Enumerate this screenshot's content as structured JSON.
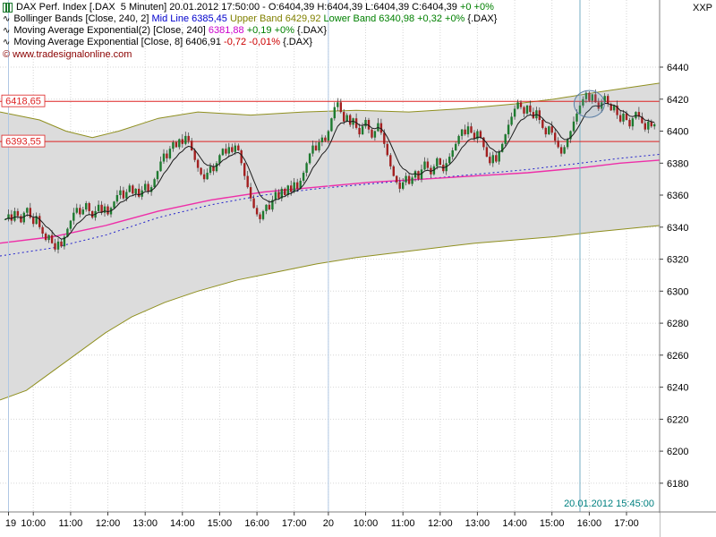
{
  "theme": {
    "grid": "#d6d6d6",
    "band_fill": "#dcdcdc",
    "band_edge": "#8f8f1f",
    "mid_line": "#2222cc",
    "ema240": "#ee2fa8",
    "ema8": "#1a1a1a",
    "candle_up": "#1d7a2f",
    "candle_down": "#a32020",
    "wick": "#333333",
    "hline": "#dd2222",
    "session_line": "#b0c8e4",
    "cursor_line": "#74aec6",
    "circle_stroke": "#5b7fa6",
    "circle_fill": "rgba(130,160,195,0.18)",
    "axis_border": "#808080",
    "timestamp": "#008080",
    "copyright": "#8b0000"
  },
  "icons": {
    "wave": "∿"
  },
  "legend": {
    "lines": [
      {
        "name": "legend-instrument",
        "icon": "candlestick-icon",
        "segments": [
          {
            "t": "DAX Perf. Index [.DAX  5 Minuten] 20.01.2012 17:50:00 - O:6404,39 H:6404,39 L:6404,39 C:6404,39 ",
            "c": "#000000"
          },
          {
            "t": "+0 +0%",
            "c": "#008000"
          }
        ]
      },
      {
        "name": "legend-bollinger",
        "icon": "wave-icon",
        "segments": [
          {
            "t": "Bollinger Bands [Close, 240, 2] ",
            "c": "#000000"
          },
          {
            "t": "Mid Line 6385,45 ",
            "c": "#0000cc"
          },
          {
            "t": "Upper Band 6429,92 ",
            "c": "#808000"
          },
          {
            "t": "Lower Band 6340,98 ",
            "c": "#008000"
          },
          {
            "t": "+0,32 +0% ",
            "c": "#008000"
          },
          {
            "t": "{.DAX}",
            "c": "#000000"
          }
        ]
      },
      {
        "name": "legend-ema240",
        "icon": "wave-icon",
        "segments": [
          {
            "t": "Moving Average Exponential(2) [Close, 240] ",
            "c": "#000000"
          },
          {
            "t": "6381,88 ",
            "c": "#cc00cc"
          },
          {
            "t": "+0,19 +0% ",
            "c": "#008000"
          },
          {
            "t": "{.DAX}",
            "c": "#000000"
          }
        ]
      },
      {
        "name": "legend-ema8",
        "icon": "wave-icon",
        "segments": [
          {
            "t": "Moving Average Exponential [Close, 8] ",
            "c": "#000000"
          },
          {
            "t": "6406,91 ",
            "c": "#000000"
          },
          {
            "t": "-0,72 -0,01% ",
            "c": "#cc0000"
          },
          {
            "t": "{.DAX}",
            "c": "#000000"
          }
        ]
      },
      {
        "name": "legend-copyright",
        "icon": null,
        "segments": [
          {
            "t": "© www.tradesignalonline.com",
            "c": "#8b0000"
          }
        ]
      }
    ]
  },
  "price_axis": {
    "unit": "XXP",
    "ticks": [
      6440,
      6420,
      6400,
      6380,
      6360,
      6340,
      6320,
      6300,
      6280,
      6260,
      6240,
      6220,
      6200,
      6180
    ]
  },
  "time_axis": {
    "ticks": [
      {
        "i": 1,
        "label": "19"
      },
      {
        "i": 9,
        "label": "10:00"
      },
      {
        "i": 21,
        "label": "11:00"
      },
      {
        "i": 33,
        "label": "12:00"
      },
      {
        "i": 45,
        "label": "13:00"
      },
      {
        "i": 57,
        "label": "14:00"
      },
      {
        "i": 69,
        "label": "15:00"
      },
      {
        "i": 81,
        "label": "16:00"
      },
      {
        "i": 93,
        "label": "17:00"
      },
      {
        "i": 104,
        "label": "20"
      },
      {
        "i": 116,
        "label": "10:00"
      },
      {
        "i": 128,
        "label": "11:00"
      },
      {
        "i": 140,
        "label": "12:00"
      },
      {
        "i": 152,
        "label": "13:00"
      },
      {
        "i": 164,
        "label": "14:00"
      },
      {
        "i": 176,
        "label": "15:00"
      },
      {
        "i": 188,
        "label": "16:00"
      },
      {
        "i": 200,
        "label": "17:00"
      }
    ]
  },
  "hlines": [
    {
      "value": 6418.65,
      "label": "6418,65"
    },
    {
      "value": 6393.55,
      "label": "6393,55"
    }
  ],
  "cursor": {
    "timestamp": "20.01.2012 15:45:00",
    "index": 185
  },
  "annotation_circle": {
    "index": 188,
    "price": 6417
  },
  "chart_data": {
    "type": "candlestick",
    "title": "DAX Perf. Index [.DAX 5 Minuten]",
    "interval_minutes": 5,
    "dates": [
      "19.01.2012",
      "20.01.2012"
    ],
    "ylim": [
      6180,
      6440
    ],
    "last_bar": {
      "time": "20.01.2012 17:50:00",
      "open": 6404.39,
      "high": 6404.39,
      "low": 6404.39,
      "close": 6404.39,
      "change": "+0",
      "change_pct": "+0%"
    },
    "indicators": {
      "bollinger": {
        "params": "[Close, 240, 2]",
        "mid": 6385.45,
        "upper": 6429.92,
        "lower": 6340.98,
        "change": "+0,32",
        "change_pct": "+0%"
      },
      "ema240": {
        "params": "[Close, 240]",
        "value": 6381.88,
        "change": "+0,19",
        "change_pct": "+0%"
      },
      "ema8": {
        "params": "[Close, 8]",
        "value": 6406.91,
        "change": "-0,72",
        "change_pct": "-0,01%"
      }
    },
    "session_break_indices": [
      1,
      104
    ],
    "candles_per_hour": 12,
    "closes": [
      6345,
      6348,
      6344,
      6350,
      6347,
      6343,
      6349,
      6352,
      6346,
      6342,
      6347,
      6340,
      6336,
      6332,
      6335,
      6330,
      6326,
      6331,
      6328,
      6334,
      6339,
      6344,
      6349,
      6352,
      6348,
      6351,
      6355,
      6350,
      6346,
      6350,
      6354,
      6349,
      6353,
      6348,
      6352,
      6356,
      6360,
      6363,
      6358,
      6362,
      6366,
      6361,
      6364,
      6359,
      6363,
      6367,
      6362,
      6365,
      6370,
      6375,
      6381,
      6386,
      6383,
      6389,
      6393,
      6390,
      6395,
      6392,
      6397,
      6394,
      6388,
      6382,
      6377,
      6373,
      6370,
      6374,
      6378,
      6375,
      6380,
      6385,
      6389,
      6386,
      6390,
      6387,
      6391,
      6388,
      6380,
      6372,
      6365,
      6358,
      6352,
      6348,
      6345,
      6350,
      6354,
      6351,
      6357,
      6362,
      6358,
      6364,
      6360,
      6366,
      6362,
      6368,
      6364,
      6369,
      6374,
      6380,
      6386,
      6391,
      6388,
      6393,
      6396,
      6394,
      6400,
      6408,
      6415,
      6418,
      6412,
      6406,
      6410,
      6404,
      6408,
      6402,
      6398,
      6403,
      6407,
      6401,
      6396,
      6400,
      6405,
      6399,
      6392,
      6385,
      6378,
      6372,
      6368,
      6364,
      6368,
      6372,
      6367,
      6371,
      6375,
      6370,
      6376,
      6381,
      6377,
      6373,
      6378,
      6383,
      6379,
      6375,
      6380,
      6384,
      6388,
      6392,
      6397,
      6401,
      6398,
      6403,
      6399,
      6395,
      6400,
      6396,
      6390,
      6384,
      6380,
      6385,
      6381,
      6387,
      6392,
      6398,
      6404,
      6409,
      6414,
      6418,
      6415,
      6411,
      6416,
      6412,
      6408,
      6413,
      6407,
      6402,
      6398,
      6403,
      6399,
      6394,
      6390,
      6386,
      6390,
      6395,
      6400,
      6406,
      6411,
      6416,
      6420,
      6424,
      6419,
      6423,
      6418,
      6414,
      6418,
      6422,
      6417,
      6413,
      6416,
      6410,
      6406,
      6411,
      6407,
      6403,
      6408,
      6412,
      6409,
      6405,
      6401,
      6406,
      6403,
      6404.39
    ],
    "overlays": {
      "upper_band": {
        "points": [
          [
            0,
            6412
          ],
          [
            0.06,
            6407
          ],
          [
            0.1,
            6400
          ],
          [
            0.14,
            6396
          ],
          [
            0.18,
            6400
          ],
          [
            0.24,
            6408
          ],
          [
            0.3,
            6412
          ],
          [
            0.38,
            6410
          ],
          [
            0.46,
            6412
          ],
          [
            0.54,
            6413
          ],
          [
            0.62,
            6412
          ],
          [
            0.7,
            6414
          ],
          [
            0.78,
            6417
          ],
          [
            0.84,
            6420
          ],
          [
            0.9,
            6424
          ],
          [
            0.95,
            6427
          ],
          [
            1,
            6430
          ]
        ]
      },
      "lower_band": {
        "points": [
          [
            0,
            6232
          ],
          [
            0.04,
            6238
          ],
          [
            0.08,
            6250
          ],
          [
            0.12,
            6262
          ],
          [
            0.16,
            6274
          ],
          [
            0.2,
            6284
          ],
          [
            0.25,
            6293
          ],
          [
            0.3,
            6300
          ],
          [
            0.36,
            6307
          ],
          [
            0.42,
            6312
          ],
          [
            0.48,
            6317
          ],
          [
            0.54,
            6321
          ],
          [
            0.6,
            6324
          ],
          [
            0.66,
            6327
          ],
          [
            0.72,
            6330
          ],
          [
            0.78,
            6332
          ],
          [
            0.84,
            6334
          ],
          [
            0.9,
            6337
          ],
          [
            0.95,
            6339
          ],
          [
            1,
            6341
          ]
        ]
      },
      "mid_line": {
        "points": [
          [
            0,
            6322
          ],
          [
            0.08,
            6327
          ],
          [
            0.16,
            6335
          ],
          [
            0.24,
            6346
          ],
          [
            0.32,
            6354
          ],
          [
            0.4,
            6360
          ],
          [
            0.48,
            6364
          ],
          [
            0.56,
            6367
          ],
          [
            0.64,
            6370
          ],
          [
            0.72,
            6373
          ],
          [
            0.8,
            6376
          ],
          [
            0.88,
            6380
          ],
          [
            0.94,
            6383
          ],
          [
            1,
            6385.45
          ]
        ]
      },
      "ema240": {
        "points": [
          [
            0,
            6330
          ],
          [
            0.08,
            6334
          ],
          [
            0.16,
            6341
          ],
          [
            0.24,
            6350
          ],
          [
            0.32,
            6357
          ],
          [
            0.4,
            6362
          ],
          [
            0.48,
            6365
          ],
          [
            0.56,
            6368
          ],
          [
            0.64,
            6370
          ],
          [
            0.72,
            6372
          ],
          [
            0.8,
            6374
          ],
          [
            0.88,
            6377
          ],
          [
            0.94,
            6380
          ],
          [
            1,
            6381.88
          ]
        ]
      }
    }
  }
}
